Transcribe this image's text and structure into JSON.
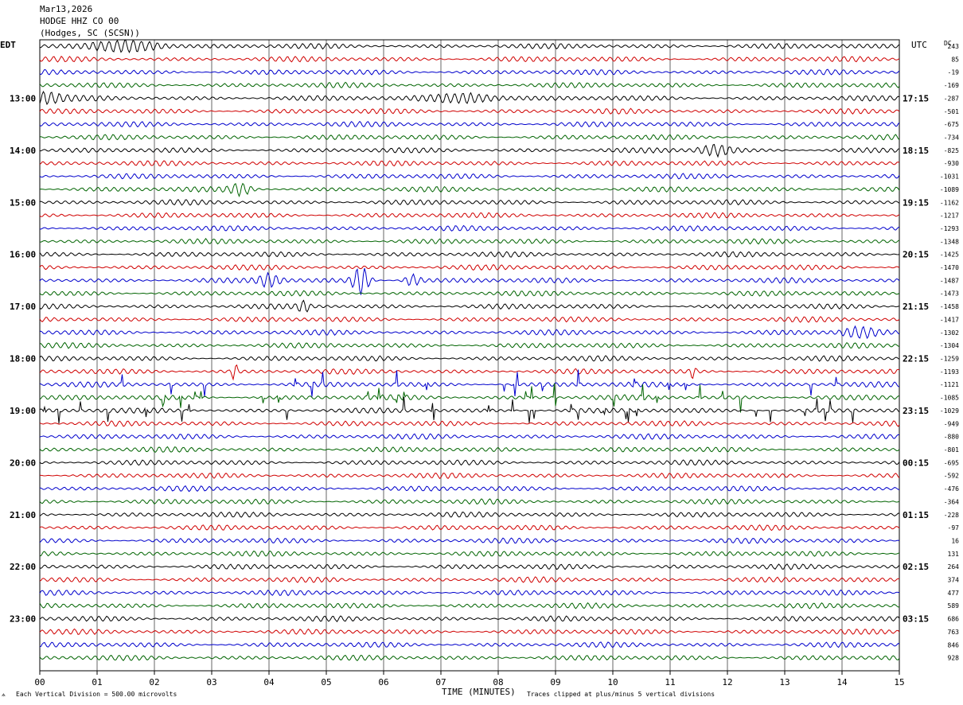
{
  "header": {
    "date": "Mar13,2026",
    "station": "HODGE HHZ CO 00",
    "location": "(Hodges, SC (SCSN))"
  },
  "chart_data": {
    "type": "line",
    "subtype": "helicorder",
    "left_axis_label": "EDT",
    "right_axis_label": "UTC",
    "dc_label": "DC",
    "xlabel": "TIME (MINUTES)",
    "x_ticks": [
      "00",
      "01",
      "02",
      "03",
      "04",
      "05",
      "06",
      "07",
      "08",
      "09",
      "10",
      "11",
      "12",
      "13",
      "14",
      "15"
    ],
    "xlim": [
      0,
      15
    ],
    "left_hour_labels": [
      "13:00",
      "14:00",
      "15:00",
      "16:00",
      "17:00",
      "18:00",
      "19:00",
      "20:00",
      "21:00",
      "22:00",
      "23:00"
    ],
    "right_hour_labels": [
      "17:15",
      "18:15",
      "19:15",
      "20:15",
      "21:15",
      "22:15",
      "23:15",
      "00:15",
      "01:15",
      "02:15",
      "03:15"
    ],
    "hour_label_first_row": 4,
    "rows_per_hour": 4,
    "trace_count": 48,
    "trace_colors": [
      "#000000",
      "#d00000",
      "#0000cc",
      "#006400"
    ],
    "dc_offsets": [
      243,
      85,
      -19,
      -169,
      -287,
      -501,
      -675,
      -734,
      -825,
      -930,
      -1031,
      -1089,
      -1162,
      -1217,
      -1293,
      -1348,
      -1425,
      -1470,
      -1487,
      -1473,
      -1458,
      -1417,
      -1302,
      -1304,
      -1259,
      -1193,
      -1121,
      -1085,
      -1029,
      -949,
      -880,
      -801,
      -695,
      -592,
      -476,
      -364,
      -228,
      -97,
      16,
      131,
      264,
      374,
      477,
      589,
      686,
      763,
      846,
      928
    ],
    "activity": {
      "quiet_noise": 0.35,
      "events": [
        {
          "row": 0,
          "minute": 1.6,
          "amp": 0.9,
          "width": 0.6
        },
        {
          "row": 4,
          "minute": 0.0,
          "amp": 0.9,
          "width": 0.4
        },
        {
          "row": 4,
          "minute": 7.4,
          "amp": 0.8,
          "width": 0.6
        },
        {
          "row": 8,
          "minute": 11.8,
          "amp": 0.8,
          "width": 0.3
        },
        {
          "row": 11,
          "minute": 3.5,
          "amp": 0.9,
          "width": 0.2
        },
        {
          "row": 18,
          "minute": 5.6,
          "amp": 2.2,
          "width": 0.15
        },
        {
          "row": 18,
          "minute": 4.0,
          "amp": 1.0,
          "width": 0.2
        },
        {
          "row": 18,
          "minute": 6.5,
          "amp": 0.9,
          "width": 0.15
        },
        {
          "row": 20,
          "minute": 4.6,
          "amp": 0.8,
          "width": 0.1
        },
        {
          "row": 22,
          "minute": 14.3,
          "amp": 0.7,
          "width": 0.3
        },
        {
          "row": 25,
          "minute": 3.4,
          "amp": 1.4,
          "width": 0.05
        },
        {
          "row": 25,
          "minute": 11.4,
          "amp": 1.0,
          "width": 0.05
        }
      ],
      "spiky_rows": [
        {
          "row": 26,
          "density": 0.018,
          "amp": 1.6
        },
        {
          "row": 27,
          "density": 0.025,
          "amp": 1.6
        },
        {
          "row": 28,
          "density": 0.03,
          "amp": 1.4
        }
      ]
    },
    "vertical_division": "Each Vertical Division =   500.00 microvolts",
    "clip_note": "Traces clipped at plus/minus 5 vertical divisions"
  }
}
